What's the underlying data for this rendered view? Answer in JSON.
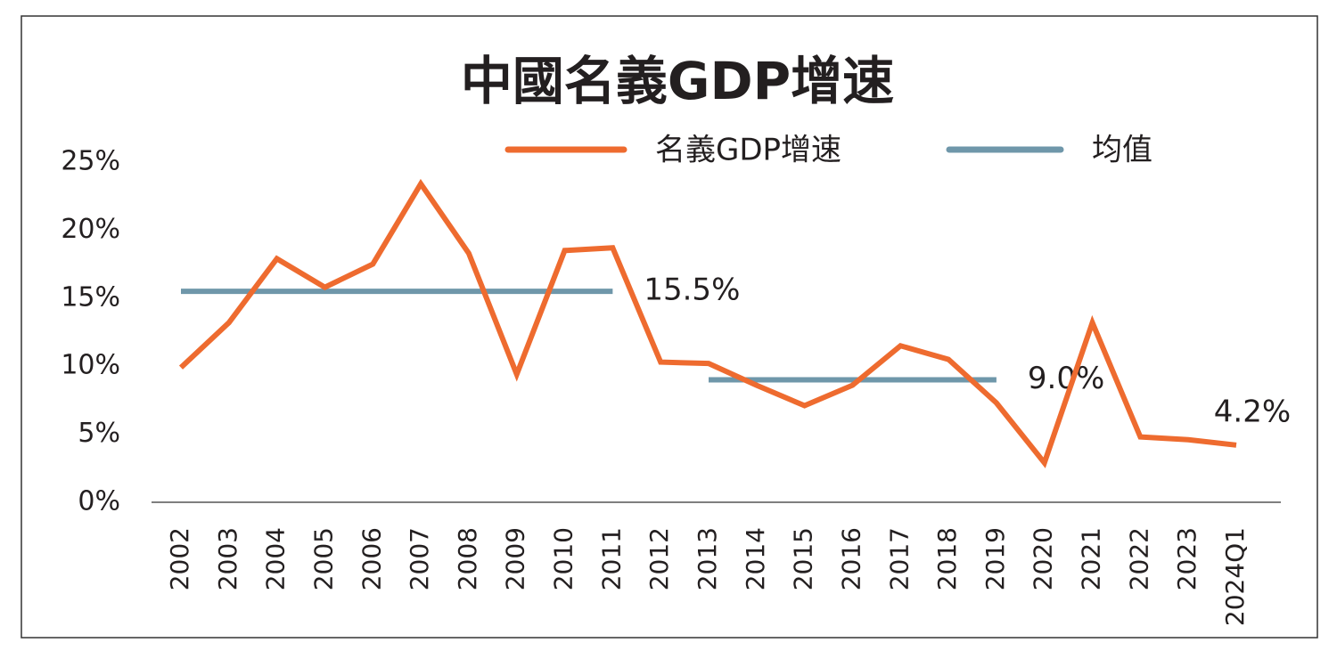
{
  "chart_data": {
    "type": "line",
    "title": "中國名義GDP增速",
    "categories": [
      "2002",
      "2003",
      "2004",
      "2005",
      "2006",
      "2007",
      "2008",
      "2009",
      "2010",
      "2011",
      "2012",
      "2013",
      "2014",
      "2015",
      "2016",
      "2017",
      "2018",
      "2019",
      "2020",
      "2021",
      "2022",
      "2023",
      "2024Q1"
    ],
    "series": [
      {
        "name": "名義GDP增速",
        "color": "#ee6b2f",
        "values": [
          9.9,
          13.2,
          17.9,
          15.8,
          17.5,
          23.4,
          18.3,
          9.4,
          18.5,
          18.7,
          10.3,
          10.2,
          8.6,
          7.1,
          8.6,
          11.5,
          10.5,
          7.3,
          2.9,
          13.2,
          4.8,
          4.6,
          4.2
        ],
        "value_labels": [
          null,
          null,
          null,
          null,
          null,
          null,
          null,
          null,
          null,
          null,
          null,
          null,
          null,
          null,
          null,
          null,
          null,
          null,
          null,
          null,
          null,
          null,
          "4.2%"
        ]
      },
      {
        "name": "均值",
        "color": "#6f97aa",
        "values": [
          15.5,
          15.5,
          15.5,
          15.5,
          15.5,
          15.5,
          15.5,
          15.5,
          15.5,
          15.5,
          null,
          9.0,
          9.0,
          9.0,
          9.0,
          9.0,
          9.0,
          9.0,
          null,
          null,
          null,
          null,
          null
        ],
        "value_labels": [
          null,
          null,
          null,
          null,
          null,
          null,
          null,
          null,
          null,
          "15.5%",
          null,
          null,
          null,
          null,
          null,
          null,
          null,
          "9.0%",
          null,
          null,
          null,
          null,
          null
        ]
      }
    ],
    "ylim": [
      0,
      25
    ],
    "yticks": [
      {
        "value": 0,
        "label": "0%"
      },
      {
        "value": 5,
        "label": "5%"
      },
      {
        "value": 10,
        "label": "10%"
      },
      {
        "value": 15,
        "label": "15%"
      },
      {
        "value": 20,
        "label": "20%"
      },
      {
        "value": 25,
        "label": "25%"
      }
    ],
    "grid": false
  }
}
